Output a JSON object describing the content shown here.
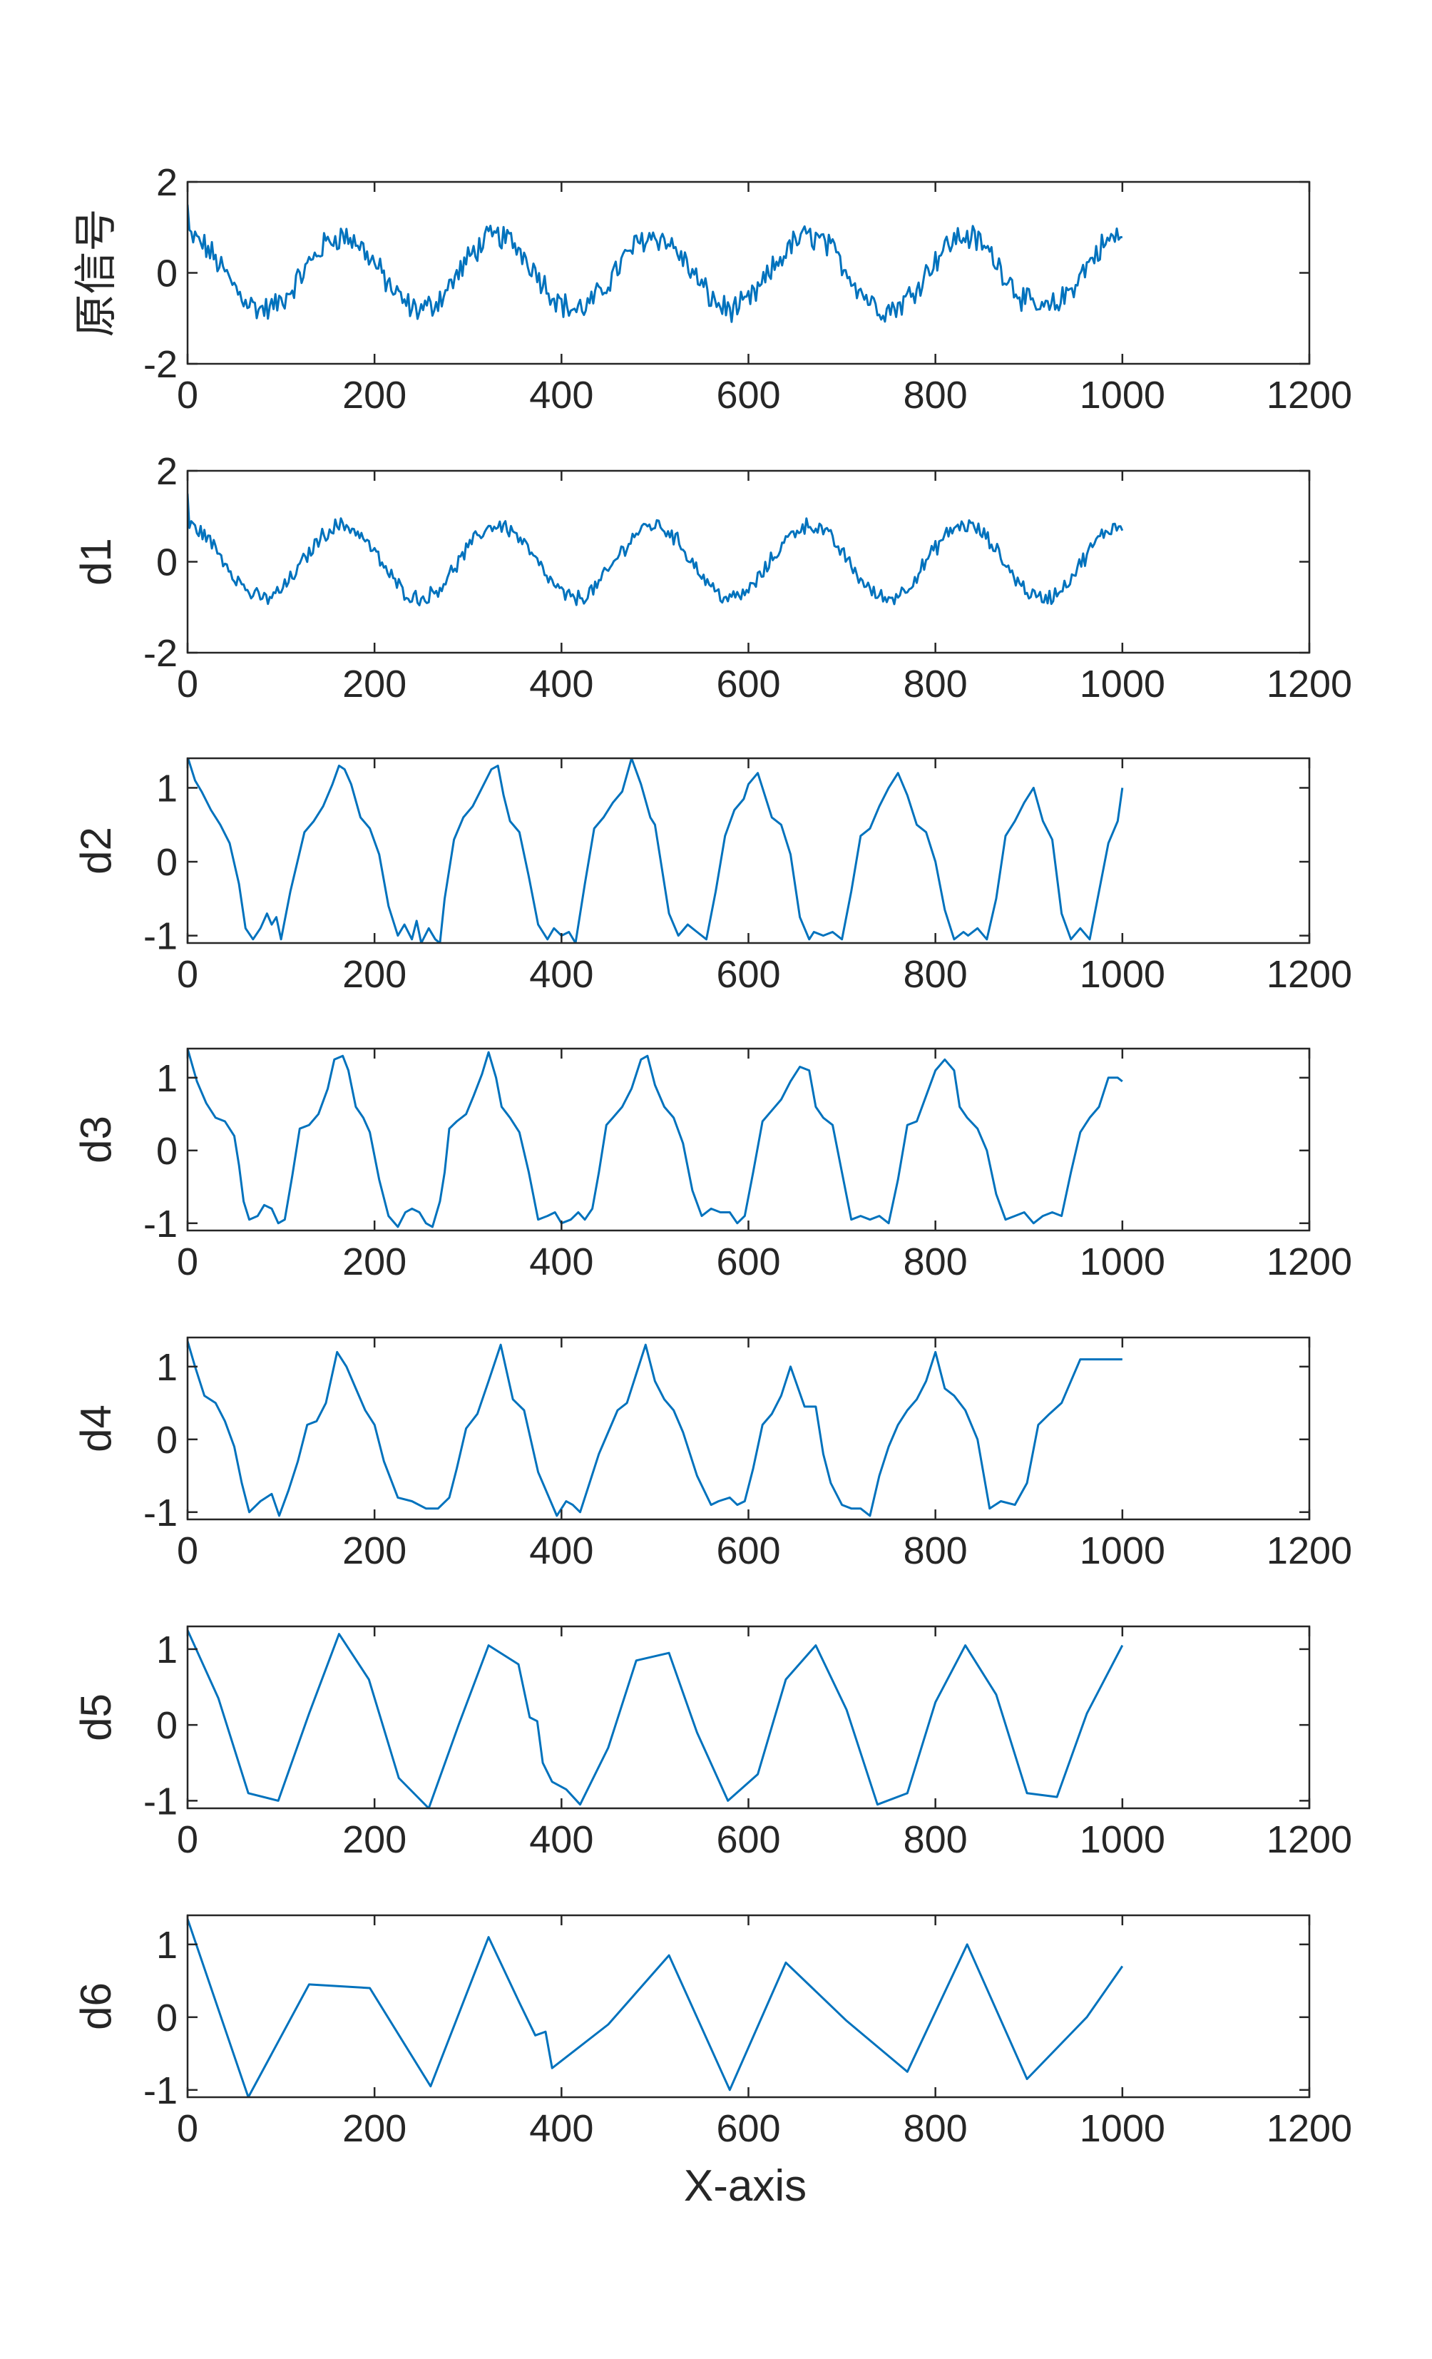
{
  "figure": {
    "xlabel": "X-axis",
    "line_color": "#0072BD"
  },
  "chart_data": [
    {
      "type": "line",
      "ylabel": "原信号",
      "xlim": [
        0,
        1200
      ],
      "ylim": [
        -2,
        2
      ],
      "xticks": [
        0,
        200,
        400,
        600,
        800,
        1000,
        1200
      ],
      "yticks": [
        -2,
        0,
        2
      ],
      "grid": false,
      "series": [
        {
          "style": "noisy",
          "noise": 0.5,
          "x_end": 1000
        }
      ]
    },
    {
      "type": "line",
      "ylabel": "d1",
      "xlim": [
        0,
        1200
      ],
      "ylim": [
        -2,
        2
      ],
      "xticks": [
        0,
        200,
        400,
        600,
        800,
        1000,
        1200
      ],
      "yticks": [
        -2,
        0,
        2
      ],
      "grid": false,
      "series": [
        {
          "style": "noisy",
          "noise": 0.3,
          "x_end": 1000
        }
      ]
    },
    {
      "type": "line",
      "ylabel": "d2",
      "xlim": [
        0,
        1200
      ],
      "ylim": [
        -1.1,
        1.4
      ],
      "xticks": [
        0,
        200,
        400,
        600,
        800,
        1000,
        1200
      ],
      "yticks": [
        -1,
        0,
        1
      ],
      "grid": false,
      "series": [
        {
          "x": [
            0,
            8,
            15,
            25,
            35,
            45,
            55,
            62,
            70,
            78,
            85,
            90,
            95,
            100,
            110,
            125,
            135,
            145,
            155,
            162,
            168,
            175,
            185,
            195,
            205,
            215,
            225,
            232,
            240,
            245,
            250,
            258,
            265,
            270,
            275,
            285,
            295,
            305,
            315,
            325,
            332,
            338,
            345,
            355,
            365,
            375,
            385,
            392,
            400,
            408,
            415,
            425,
            435,
            445,
            455,
            465,
            475,
            485,
            495,
            500,
            505,
            515,
            525,
            535,
            545,
            555,
            565,
            575,
            585,
            595,
            600,
            610,
            625,
            635,
            645,
            655,
            665,
            670,
            680,
            690,
            700,
            710,
            720,
            730,
            740,
            750,
            760,
            770,
            780,
            790,
            800,
            810,
            820,
            830,
            835,
            845,
            855,
            865,
            875,
            885,
            895,
            905,
            915,
            925,
            935,
            945,
            955,
            965,
            975,
            985,
            995,
            1000
          ],
          "y": [
            1.42,
            1.1,
            0.95,
            0.7,
            0.5,
            0.25,
            -0.3,
            -0.9,
            -1.05,
            -0.9,
            -0.7,
            -0.85,
            -0.75,
            -1.05,
            -0.4,
            0.4,
            0.55,
            0.75,
            1.05,
            1.3,
            1.25,
            1.05,
            0.6,
            0.45,
            0.1,
            -0.6,
            -1.0,
            -0.85,
            -1.05,
            -0.8,
            -1.1,
            -0.9,
            -1.05,
            -1.1,
            -0.5,
            0.3,
            0.6,
            0.75,
            1.0,
            1.25,
            1.3,
            0.9,
            0.55,
            0.4,
            -0.2,
            -0.85,
            -1.05,
            -0.9,
            -1.0,
            -0.95,
            -1.1,
            -0.3,
            0.45,
            0.6,
            0.8,
            0.95,
            1.4,
            1.05,
            0.6,
            0.5,
            0.1,
            -0.7,
            -1.0,
            -0.85,
            -0.95,
            -1.05,
            -0.4,
            0.35,
            0.7,
            0.85,
            1.05,
            1.2,
            0.6,
            0.5,
            0.1,
            -0.75,
            -1.05,
            -0.95,
            -1.0,
            -0.95,
            -1.05,
            -0.4,
            0.35,
            0.45,
            0.75,
            1.0,
            1.2,
            0.9,
            0.5,
            0.4,
            0.0,
            -0.65,
            -1.05,
            -0.95,
            -1.0,
            -0.9,
            -1.05,
            -0.5,
            0.35,
            0.55,
            0.8,
            1.0,
            0.55,
            0.3,
            -0.7,
            -1.05,
            -0.9,
            -1.05,
            -0.4,
            0.25,
            0.55,
            1.0
          ]
        }
      ]
    },
    {
      "type": "line",
      "ylabel": "d3",
      "xlim": [
        0,
        1200
      ],
      "ylim": [
        -1.1,
        1.4
      ],
      "xticks": [
        0,
        200,
        400,
        600,
        800,
        1000,
        1200
      ],
      "yticks": [
        -1,
        0,
        1
      ],
      "grid": false,
      "series": [
        {
          "x": [
            0,
            10,
            20,
            30,
            40,
            50,
            55,
            60,
            66,
            75,
            82,
            90,
            97,
            104,
            112,
            120,
            130,
            140,
            150,
            157,
            166,
            172,
            180,
            188,
            195,
            205,
            215,
            225,
            233,
            240,
            248,
            255,
            262,
            270,
            275,
            280,
            288,
            298,
            306,
            315,
            322,
            330,
            336,
            345,
            355,
            365,
            375,
            385,
            393,
            400,
            410,
            418,
            425,
            433,
            440,
            448,
            455,
            465,
            475,
            485,
            492,
            500,
            510,
            520,
            530,
            540,
            550,
            560,
            570,
            580,
            588,
            596,
            605,
            615,
            625,
            635,
            645,
            655,
            665,
            672,
            680,
            690,
            700,
            710,
            720,
            730,
            740,
            750,
            760,
            770,
            780,
            790,
            800,
            810,
            820,
            826,
            834,
            845,
            855,
            865,
            875,
            885,
            895,
            905,
            915,
            925,
            935,
            945,
            955,
            965,
            975,
            985,
            995,
            1000
          ],
          "y": [
            1.4,
            0.95,
            0.65,
            0.45,
            0.4,
            0.2,
            -0.2,
            -0.7,
            -0.95,
            -0.9,
            -0.75,
            -0.8,
            -1.0,
            -0.95,
            -0.35,
            0.3,
            0.35,
            0.5,
            0.85,
            1.25,
            1.3,
            1.1,
            0.6,
            0.45,
            0.25,
            -0.4,
            -0.9,
            -1.05,
            -0.85,
            -0.8,
            -0.85,
            -1.0,
            -1.05,
            -0.7,
            -0.3,
            0.3,
            0.4,
            0.5,
            0.75,
            1.05,
            1.35,
            1.0,
            0.6,
            0.45,
            0.25,
            -0.3,
            -0.95,
            -0.9,
            -0.85,
            -1.0,
            -0.95,
            -0.85,
            -0.95,
            -0.8,
            -0.3,
            0.35,
            0.45,
            0.6,
            0.85,
            1.25,
            1.3,
            0.9,
            0.6,
            0.45,
            0.1,
            -0.55,
            -0.9,
            -0.8,
            -0.85,
            -0.85,
            -1.0,
            -0.9,
            -0.3,
            0.4,
            0.55,
            0.7,
            0.95,
            1.15,
            1.1,
            0.6,
            0.45,
            0.35,
            -0.3,
            -0.95,
            -0.9,
            -0.95,
            -0.9,
            -1.0,
            -0.4,
            0.35,
            0.4,
            0.75,
            1.1,
            1.25,
            1.1,
            0.6,
            0.45,
            0.3,
            0.0,
            -0.6,
            -0.95,
            -0.9,
            -0.85,
            -1.0,
            -0.9,
            -0.85,
            -0.9,
            -0.3,
            0.25,
            0.45,
            0.6,
            1.0,
            1.0,
            0.95
          ]
        }
      ]
    },
    {
      "type": "line",
      "ylabel": "d4",
      "xlim": [
        0,
        1200
      ],
      "ylim": [
        -1.1,
        1.4
      ],
      "xticks": [
        0,
        200,
        400,
        600,
        800,
        1000,
        1200
      ],
      "yticks": [
        -1,
        0,
        1
      ],
      "grid": false,
      "series": [
        {
          "x": [
            0,
            8,
            18,
            30,
            40,
            50,
            58,
            66,
            78,
            90,
            98,
            108,
            118,
            128,
            138,
            148,
            160,
            170,
            180,
            190,
            200,
            210,
            225,
            240,
            255,
            268,
            280,
            288,
            298,
            310,
            322,
            335,
            348,
            360,
            375,
            385,
            395,
            405,
            412,
            420,
            430,
            440,
            450,
            460,
            470,
            480,
            490,
            500,
            510,
            520,
            530,
            545,
            560,
            568,
            580,
            588,
            596,
            605,
            615,
            625,
            635,
            645,
            660,
            672,
            680,
            688,
            700,
            710,
            720,
            730,
            740,
            750,
            760,
            770,
            780,
            790,
            800,
            810,
            820,
            832,
            845,
            858,
            870,
            885,
            898,
            910,
            922,
            935,
            945,
            955,
            965,
            975,
            985,
            995,
            1000
          ],
          "y": [
            1.35,
            1.0,
            0.6,
            0.5,
            0.25,
            -0.1,
            -0.6,
            -1.0,
            -0.85,
            -0.75,
            -1.05,
            -0.7,
            -0.3,
            0.2,
            0.25,
            0.5,
            1.2,
            1.0,
            0.7,
            0.4,
            0.2,
            -0.3,
            -0.8,
            -0.85,
            -0.95,
            -0.95,
            -0.8,
            -0.4,
            0.15,
            0.35,
            0.8,
            1.3,
            0.55,
            0.4,
            -0.45,
            -0.75,
            -1.05,
            -0.85,
            -0.9,
            -1.0,
            -0.6,
            -0.2,
            0.1,
            0.4,
            0.5,
            0.9,
            1.3,
            0.8,
            0.55,
            0.4,
            0.1,
            -0.5,
            -0.9,
            -0.85,
            -0.8,
            -0.9,
            -0.85,
            -0.4,
            0.2,
            0.35,
            0.6,
            1.0,
            0.45,
            0.45,
            -0.2,
            -0.6,
            -0.9,
            -0.95,
            -0.95,
            -1.05,
            -0.5,
            -0.1,
            0.2,
            0.4,
            0.55,
            0.8,
            1.2,
            0.7,
            0.6,
            0.4,
            0.0,
            -0.95,
            -0.85,
            -0.9,
            -0.6,
            0.2,
            0.35,
            0.5,
            0.8,
            1.1,
            1.1,
            1.1,
            1.1,
            1.1,
            1.1
          ]
        }
      ]
    },
    {
      "type": "line",
      "ylabel": "d5",
      "xlim": [
        0,
        1200
      ],
      "ylim": [
        -1.1,
        1.3
      ],
      "xticks": [
        0,
        200,
        400,
        600,
        800,
        1000,
        1200
      ],
      "yticks": [
        -1,
        0,
        1
      ],
      "grid": false,
      "series": [
        {
          "x": [
            0,
            33,
            65,
            97,
            130,
            162,
            194,
            226,
            258,
            290,
            322,
            354,
            366,
            374,
            380,
            390,
            405,
            420,
            450,
            480,
            515,
            545,
            578,
            610,
            640,
            672,
            705,
            738,
            770,
            800,
            832,
            865,
            898,
            930,
            962,
            1000
          ],
          "y": [
            1.25,
            0.35,
            -0.9,
            -1.0,
            0.15,
            1.2,
            0.6,
            -0.7,
            -1.1,
            0.0,
            1.05,
            0.8,
            0.1,
            0.05,
            -0.5,
            -0.75,
            -0.85,
            -1.05,
            -0.3,
            0.85,
            0.95,
            -0.1,
            -1.0,
            -0.65,
            0.6,
            1.05,
            0.2,
            -1.05,
            -0.9,
            0.3,
            1.05,
            0.4,
            -0.9,
            -0.95,
            0.15,
            1.05
          ]
        }
      ]
    },
    {
      "type": "line",
      "ylabel": "d6",
      "xlim": [
        0,
        1200
      ],
      "ylim": [
        -1.1,
        1.4
      ],
      "xticks": [
        0,
        200,
        400,
        600,
        800,
        1000,
        1200
      ],
      "yticks": [
        -1,
        0,
        1
      ],
      "grid": false,
      "series": [
        {
          "x": [
            0,
            65,
            130,
            195,
            260,
            322,
            355,
            372,
            383,
            390,
            410,
            450,
            515,
            580,
            640,
            705,
            770,
            834,
            898,
            962,
            1000
          ],
          "y": [
            1.35,
            -1.1,
            0.45,
            0.4,
            -0.95,
            1.1,
            0.2,
            -0.25,
            -0.2,
            -0.7,
            -0.5,
            -0.1,
            0.85,
            -1.0,
            0.75,
            -0.05,
            -0.75,
            1.0,
            -0.85,
            0.0,
            0.7
          ]
        }
      ]
    }
  ]
}
